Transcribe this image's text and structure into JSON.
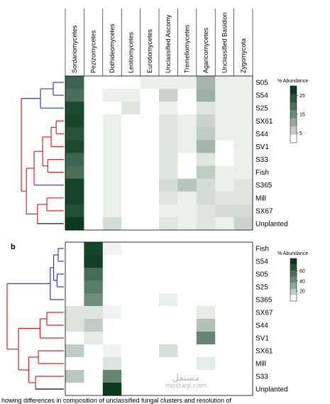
{
  "figure": {
    "panel_b_letter": "b",
    "caption_fragment": "howing differences in composition of unclassified fungal clusters and resolution of",
    "watermark": {
      "arabic": "مستقل",
      "latin": "mostaql.com"
    }
  },
  "chart_data": [
    {
      "type": "heatmap",
      "panel": "a",
      "columns": [
        "Sordariomycetes",
        "Pezizomycetes",
        "Dothideomycetes",
        "Leotiomycetes",
        "Eurotiomycetes",
        "Unclassified Ascomy",
        "Tremellomycetes",
        "Agaricomycetes",
        "Unclassified Basidion",
        "Zygomycota"
      ],
      "rows": [
        "S05",
        "S54",
        "S25",
        "SX61",
        "S44",
        "SV1",
        "S33",
        "Fish",
        "S365",
        "Mill",
        "SX67",
        "Unplanted"
      ],
      "row_cluster_colors": [
        "blue",
        "blue",
        "blue",
        "red",
        "red",
        "red",
        "red",
        "red",
        "blue",
        "red",
        "red",
        "black"
      ],
      "values": [
        [
          22,
          0,
          0,
          0,
          1,
          1,
          1,
          8,
          1,
          1
        ],
        [
          20,
          0,
          1,
          1,
          0,
          4,
          0,
          9,
          1,
          1
        ],
        [
          27,
          0,
          0,
          2,
          0,
          1,
          0,
          2,
          1,
          1
        ],
        [
          28,
          0,
          1,
          0,
          0,
          2,
          1,
          4,
          1,
          1
        ],
        [
          25,
          0,
          1,
          0,
          0,
          2,
          1,
          5,
          1,
          1
        ],
        [
          27,
          0,
          1,
          0,
          0,
          2,
          1,
          8,
          0,
          1
        ],
        [
          22,
          0,
          1,
          0,
          0,
          2,
          0,
          2,
          0,
          1
        ],
        [
          20,
          0,
          1,
          0,
          0,
          2,
          0,
          5,
          1,
          1
        ],
        [
          28,
          0,
          1,
          0,
          0,
          3,
          6,
          3,
          1,
          2
        ],
        [
          28,
          0,
          1,
          0,
          0,
          2,
          1,
          3,
          2,
          2
        ],
        [
          26,
          0,
          1,
          0,
          0,
          1,
          1,
          2,
          3,
          3
        ],
        [
          30,
          0,
          3,
          0,
          0,
          2,
          1,
          2,
          1,
          4
        ]
      ],
      "legend": {
        "title": "% Abundance",
        "ticks": [
          25,
          15,
          5
        ],
        "max": 30
      }
    },
    {
      "type": "heatmap",
      "panel": "b",
      "columns": [
        "Sordariomycetes",
        "Pezizomycetes",
        "Dothideomycetes",
        "Leotiomycetes",
        "Eurotiomycetes",
        "Unclassified Ascomy",
        "Tremellomycetes",
        "Agaricomycetes",
        "Unclassified Basidion",
        "Zygomycota"
      ],
      "rows": [
        "Fish",
        "S54",
        "S05",
        "S25",
        "S365",
        "SX67",
        "S44",
        "SV1",
        "SX61",
        "Mill",
        "S33",
        "Unplanted"
      ],
      "row_cluster_colors": [
        "blue",
        "blue",
        "blue",
        "blue",
        "blue",
        "red",
        "red",
        "red",
        "red",
        "red",
        "red",
        "black"
      ],
      "values": [
        [
          0,
          80,
          2,
          0,
          0,
          0,
          0,
          0,
          0,
          0
        ],
        [
          0,
          82,
          0,
          0,
          0,
          0,
          0,
          0,
          0,
          0
        ],
        [
          0,
          58,
          0,
          0,
          0,
          0,
          0,
          0,
          0,
          0
        ],
        [
          0,
          50,
          0,
          0,
          0,
          0,
          0,
          0,
          0,
          0
        ],
        [
          0,
          42,
          0,
          0,
          0,
          3,
          0,
          0,
          0,
          0
        ],
        [
          6,
          6,
          2,
          0,
          0,
          0,
          0,
          4,
          0,
          0
        ],
        [
          6,
          14,
          0,
          0,
          0,
          0,
          0,
          18,
          0,
          0
        ],
        [
          0,
          4,
          0,
          0,
          0,
          0,
          0,
          45,
          0,
          0
        ],
        [
          14,
          0,
          2,
          0,
          0,
          8,
          0,
          0,
          0,
          0
        ],
        [
          0,
          0,
          6,
          0,
          0,
          0,
          0,
          4,
          0,
          0
        ],
        [
          16,
          0,
          45,
          0,
          0,
          0,
          0,
          0,
          0,
          0
        ],
        [
          0,
          0,
          85,
          0,
          0,
          0,
          0,
          0,
          0,
          0
        ]
      ],
      "legend": {
        "title": "% Abundance",
        "ticks": [
          60,
          40,
          20
        ],
        "max": 85
      }
    }
  ]
}
